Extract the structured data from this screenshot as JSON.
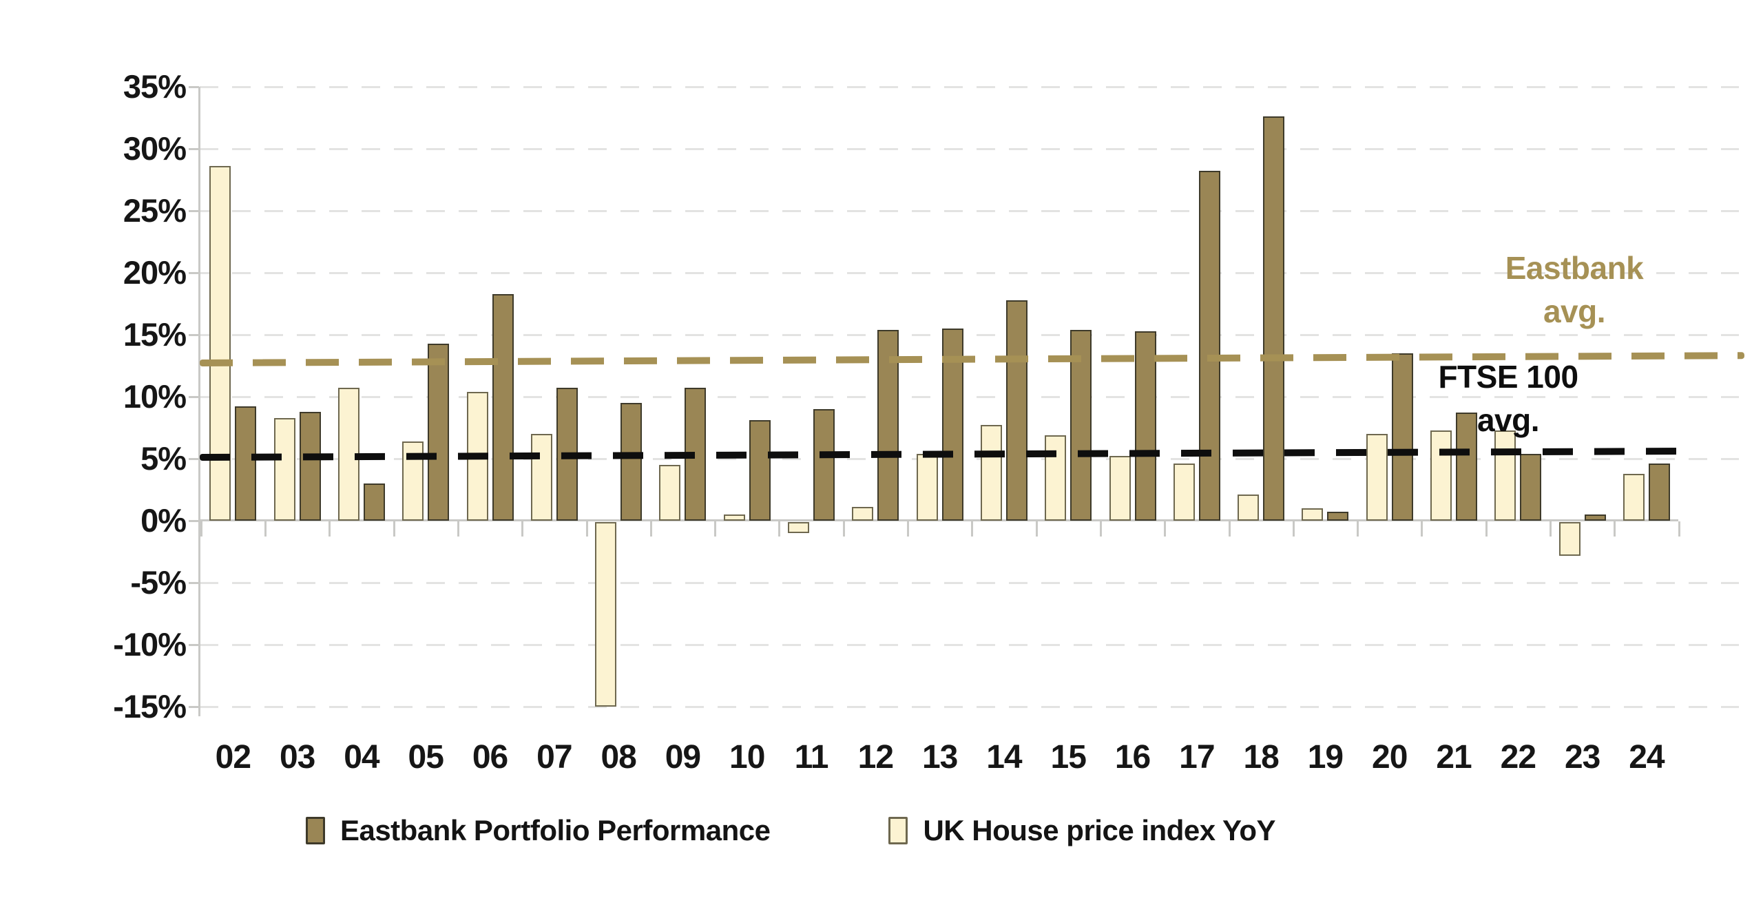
{
  "chart_data": {
    "type": "bar",
    "title": "",
    "categories": [
      "02",
      "03",
      "04",
      "05",
      "06",
      "07",
      "08",
      "09",
      "10",
      "11",
      "12",
      "13",
      "14",
      "15",
      "16",
      "17",
      "18",
      "19",
      "20",
      "21",
      "22",
      "23",
      "24"
    ],
    "series": [
      {
        "name": "UK House price index YoY",
        "color": "#fcf3d2",
        "border_color": "#6e684f",
        "values": [
          28.6,
          8.3,
          10.7,
          6.4,
          10.4,
          7.0,
          -14.9,
          4.5,
          0.5,
          -0.9,
          1.1,
          5.4,
          7.7,
          6.9,
          5.2,
          4.6,
          2.1,
          1.0,
          7.0,
          7.3,
          7.3,
          -2.7,
          3.8
        ]
      },
      {
        "name": "Eastbank Portfolio Performance",
        "color": "#9a8655",
        "border_color": "#3e3a2a",
        "values": [
          9.2,
          8.8,
          3.0,
          14.3,
          18.3,
          10.7,
          9.5,
          10.7,
          8.1,
          9.0,
          15.4,
          15.5,
          17.8,
          15.4,
          15.3,
          28.2,
          32.6,
          0.7,
          13.5,
          8.7,
          5.4,
          0.5,
          4.6
        ]
      }
    ],
    "trendlines": [
      {
        "name": "Eastbank avg.",
        "color": "#a69155",
        "start_pct": 12.7,
        "end_pct": 13.3
      },
      {
        "name": "FTSE 100 avg.",
        "color": "#0e0e0e",
        "start_pct": 5.1,
        "end_pct": 5.6
      }
    ],
    "ylim": [
      -15,
      35
    ],
    "ytick_step": 5,
    "ytick_labels": [
      "35%",
      "30%",
      "25%",
      "20%",
      "15%",
      "10%",
      "5%",
      "0%",
      "-5%",
      "-10%",
      "-15%"
    ],
    "xlabel": "",
    "ylabel": "",
    "grid": "dashed-horizontal",
    "legend_position": "bottom"
  },
  "annotations": {
    "eastbank_avg_line1": "Eastbank",
    "eastbank_avg_line2": "avg.",
    "ftse_avg_line1": "FTSE 100",
    "ftse_avg_line2": "avg."
  },
  "legend": [
    {
      "label": "Eastbank Portfolio Performance",
      "swatch": "dark"
    },
    {
      "label": "UK House price index YoY",
      "swatch": "cream"
    }
  ]
}
